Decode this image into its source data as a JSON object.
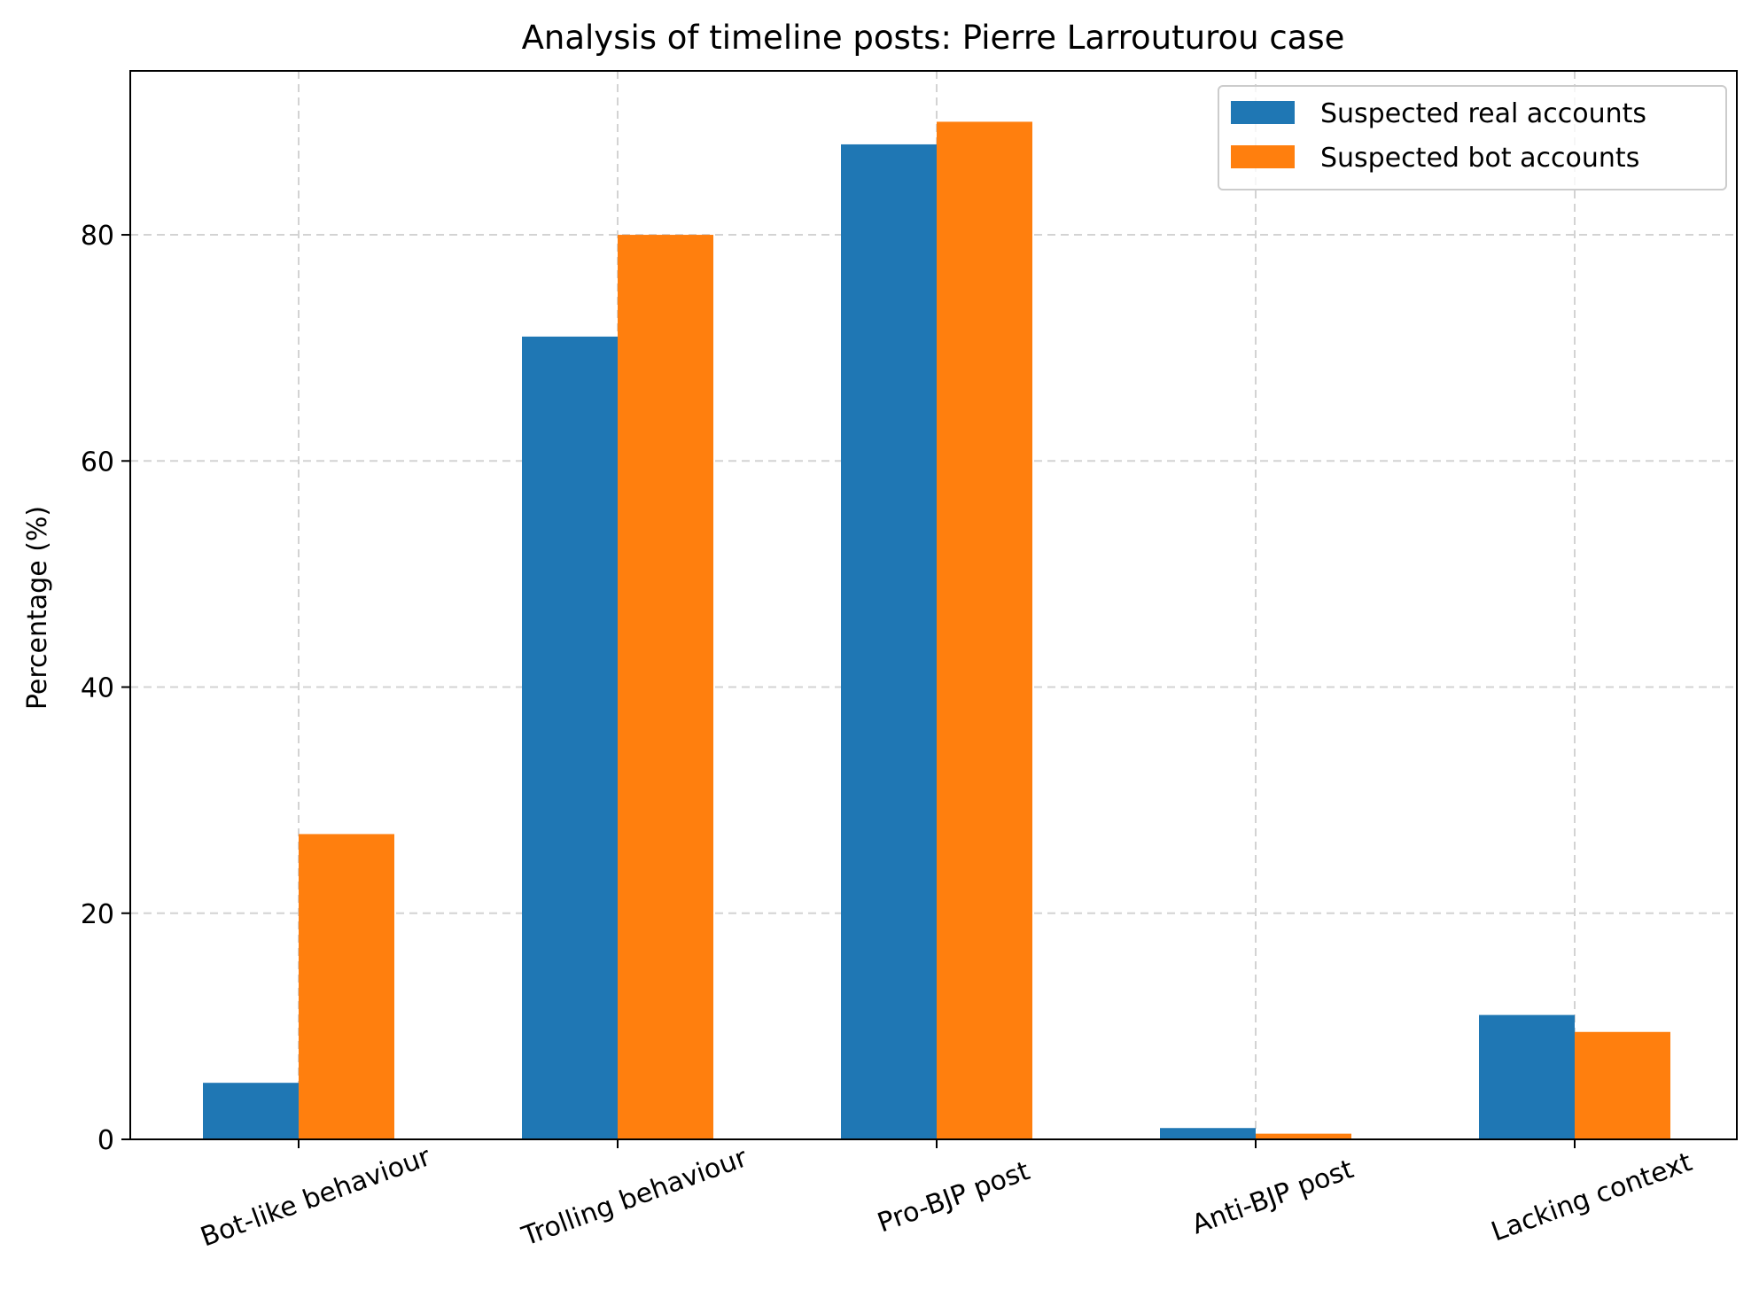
{
  "chart_data": {
    "type": "bar",
    "title": "Analysis of timeline posts: Pierre Larrouturou case",
    "xlabel": "",
    "ylabel": "Percentage (%)",
    "categories": [
      "Bot-like behaviour",
      "Trolling behaviour",
      "Pro-BJP post",
      "Anti-BJP post",
      "Lacking context"
    ],
    "series": [
      {
        "name": "Suspected real accounts",
        "color": "#1f77b4",
        "values": [
          5,
          71,
          88,
          1,
          11
        ]
      },
      {
        "name": "Suspected bot accounts",
        "color": "#ff7f0e",
        "values": [
          27,
          80,
          90,
          0.5,
          9.5
        ]
      }
    ],
    "ylim": [
      0,
      94.5
    ],
    "yticks": [
      0,
      20,
      40,
      60,
      80
    ],
    "grid": true,
    "legend_position": "top-right",
    "x_tick_rotation_deg": 20
  }
}
